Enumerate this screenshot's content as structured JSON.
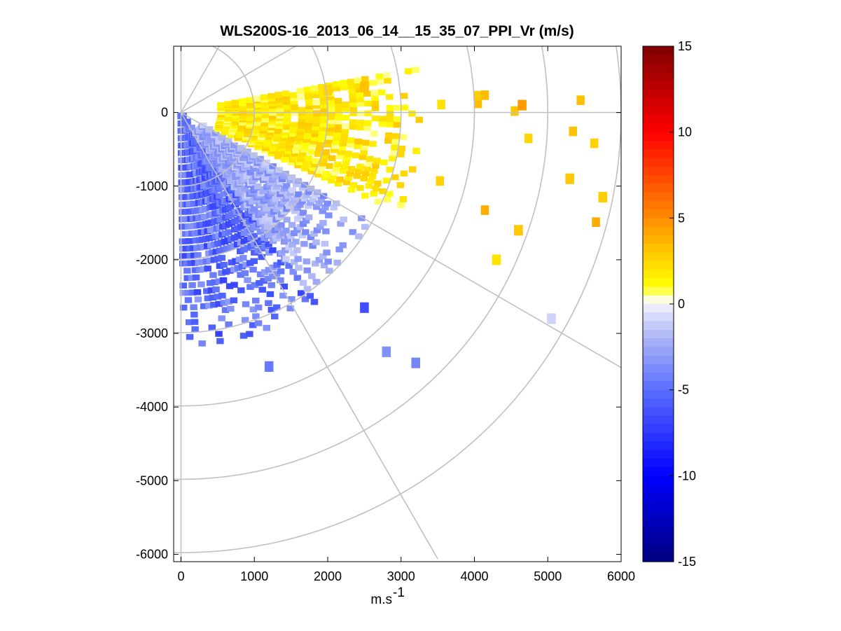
{
  "chart_data": {
    "type": "heatmap",
    "subtype": "polar-ppi-scan",
    "title": "WLS200S-16_2013_06_14__15_35_07_PPI_Vr (m/s)",
    "xlabel": "m.s",
    "xlabel_superscript": "-1",
    "ylabel": "",
    "xlim": [
      -100,
      6000
    ],
    "ylim": [
      -6100,
      900
    ],
    "xticks": [
      0,
      1000,
      2000,
      3000,
      4000,
      5000,
      6000
    ],
    "xtick_labels": [
      "0",
      "1000",
      "2000",
      "3000",
      "4000",
      "5000",
      "6000"
    ],
    "yticks": [
      0,
      -1000,
      -2000,
      -3000,
      -4000,
      -5000,
      -6000
    ],
    "ytick_labels": [
      "0",
      "-1000",
      "-2000",
      "-3000",
      "-4000",
      "-5000",
      "-6000"
    ],
    "polar_grid": {
      "origin": [
        0,
        0
      ],
      "range_rings": [
        1000,
        2000,
        3000,
        4000,
        5000,
        6000
      ],
      "spokes_deg": [
        0,
        -30,
        -60,
        -90,
        30,
        60,
        90
      ]
    },
    "scan": {
      "azimuth_start_deg": 10,
      "azimuth_end_deg": -90,
      "range_max": 6000
    },
    "colorbar": {
      "min": -15,
      "max": 15,
      "ticks": [
        15,
        10,
        5,
        0,
        -5,
        -10,
        -15
      ],
      "tick_labels": [
        "15",
        "10",
        "5",
        "0",
        "-5",
        "-10",
        "-15"
      ],
      "colormap": "blue-white-yellow-red"
    },
    "regions": [
      {
        "name": "near-field negative (blue)",
        "azimuth_deg": [
          -90,
          -55
        ],
        "range": [
          0,
          3200
        ],
        "vr_range": [
          -7,
          -3
        ]
      },
      {
        "name": "mid negative (light blue)",
        "azimuth_deg": [
          -55,
          -30
        ],
        "range": [
          300,
          3000
        ],
        "vr_range": [
          -4,
          -1
        ]
      },
      {
        "name": "positive (yellow)",
        "azimuth_deg": [
          -25,
          10
        ],
        "range": [
          500,
          3300
        ],
        "vr_range": [
          0.5,
          3
        ]
      },
      {
        "name": "far sparse positive (orange)",
        "azimuth_deg": [
          -20,
          3
        ],
        "range": [
          3500,
          6000
        ],
        "vr_range": [
          2,
          4
        ]
      }
    ],
    "sample_points": [
      {
        "x": 2000,
        "y": 300,
        "vr": 2.5
      },
      {
        "x": 2500,
        "y": 350,
        "vr": 3.2
      },
      {
        "x": 4650,
        "y": 100,
        "vr": 4.5
      },
      {
        "x": 5300,
        "y": -900,
        "vr": 3.0
      },
      {
        "x": 5750,
        "y": -1150,
        "vr": 2.8
      },
      {
        "x": 2500,
        "y": -2650,
        "vr": -6.5
      },
      {
        "x": 2800,
        "y": -3250,
        "vr": -3.5
      },
      {
        "x": 3200,
        "y": -3400,
        "vr": -4.0
      },
      {
        "x": 1200,
        "y": -3450,
        "vr": -4.5
      },
      {
        "x": 5050,
        "y": -2800,
        "vr": -1.0
      },
      {
        "x": 4300,
        "y": -2000,
        "vr": 2.0
      },
      {
        "x": 4600,
        "y": -1600,
        "vr": 3.0
      }
    ]
  }
}
